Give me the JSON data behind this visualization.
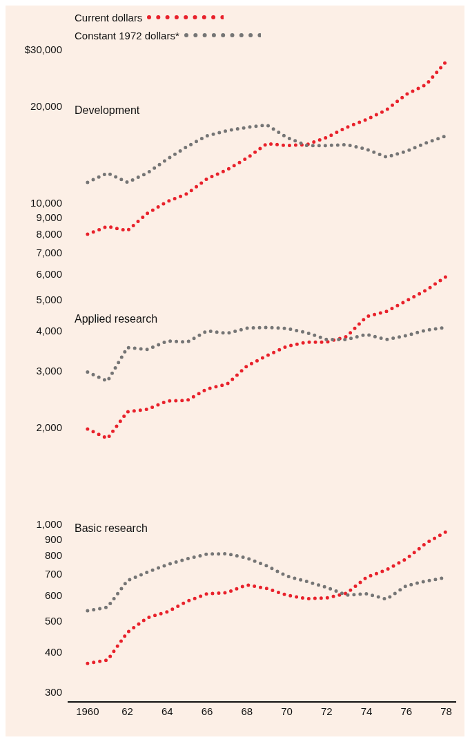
{
  "chart_data": {
    "type": "line",
    "x": [
      1960,
      1961,
      1962,
      1963,
      1964,
      1965,
      1966,
      1967,
      1968,
      1969,
      1970,
      1971,
      1972,
      1973,
      1974,
      1975,
      1976,
      1977,
      1978
    ],
    "series": [
      {
        "name": "Current dollars",
        "color": "#e8212b",
        "values": [
          8000,
          8460,
          8200,
          9290,
          10100,
          10700,
          11900,
          12700,
          13800,
          15300,
          15100,
          15200,
          16000,
          17200,
          18200,
          19500,
          21800,
          23400,
          27600
        ]
      },
      {
        "name": "Constant 1972 dollars*",
        "color": "#757575",
        "values": [
          11600,
          12400,
          11600,
          12400,
          13700,
          15000,
          16200,
          16800,
          17200,
          17500,
          16000,
          15100,
          15100,
          15200,
          14700,
          13900,
          14500,
          15400,
          16200
        ]
      },
      {
        "color": "#e8212b",
        "values": [
          1980,
          1850,
          2240,
          2280,
          2420,
          2430,
          2640,
          2730,
          3110,
          3350,
          3580,
          3690,
          3690,
          3840,
          4430,
          4600,
          4960,
          5360,
          5910
        ]
      },
      {
        "color": "#757575",
        "values": [
          2980,
          2790,
          3550,
          3500,
          3720,
          3690,
          4000,
          3930,
          4080,
          4100,
          4070,
          3950,
          3760,
          3760,
          3900,
          3760,
          3870,
          4020,
          4100
        ]
      },
      {
        "color": "#e8212b",
        "values": [
          369,
          378,
          461,
          512,
          534,
          576,
          608,
          613,
          648,
          631,
          602,
          587,
          590,
          610,
          684,
          722,
          781,
          875,
          949
        ]
      },
      {
        "color": "#757575",
        "values": [
          538,
          552,
          668,
          710,
          749,
          781,
          808,
          810,
          785,
          742,
          690,
          664,
          636,
          602,
          608,
          585,
          644,
          666,
          683
        ]
      }
    ],
    "annotations": [
      "Development",
      "Applied research",
      "Basic research"
    ],
    "xlim": [
      1959,
      1978.5
    ],
    "xticks": [
      1960,
      {
        "value": 1962,
        "label": "62"
      },
      {
        "value": 1964,
        "label": "64"
      },
      {
        "value": 1966,
        "label": "66"
      },
      {
        "value": 1968,
        "label": "68"
      },
      {
        "value": 1970,
        "label": "70"
      },
      {
        "value": 1972,
        "label": "72"
      },
      {
        "value": 1974,
        "label": "74"
      },
      {
        "value": 1976,
        "label": "76"
      },
      {
        "value": 1978,
        "label": "78"
      }
    ],
    "ylim": [
      280,
      30000
    ],
    "log": true,
    "yticks": [
      300,
      400,
      500,
      600,
      700,
      800,
      900,
      {
        "value": 1000,
        "label": "1,000"
      },
      {
        "value": 2000,
        "label": "2,000"
      },
      {
        "value": 3000,
        "label": "3,000"
      },
      {
        "value": 4000,
        "label": "4,000"
      },
      {
        "value": 5000,
        "label": "5,000"
      },
      {
        "value": 6000,
        "label": "6,000"
      },
      {
        "value": 7000,
        "label": "7,000"
      },
      {
        "value": 8000,
        "label": "8,000"
      },
      {
        "value": 9000,
        "label": "9,000"
      },
      {
        "value": 10000,
        "label": "10,000"
      },
      {
        "value": 20000,
        "label": "20,000"
      },
      {
        "value": 30000,
        "label": "$30,000"
      }
    ],
    "grid": false,
    "legend": "top left",
    "marker": "none",
    "line_style": "dotted"
  }
}
